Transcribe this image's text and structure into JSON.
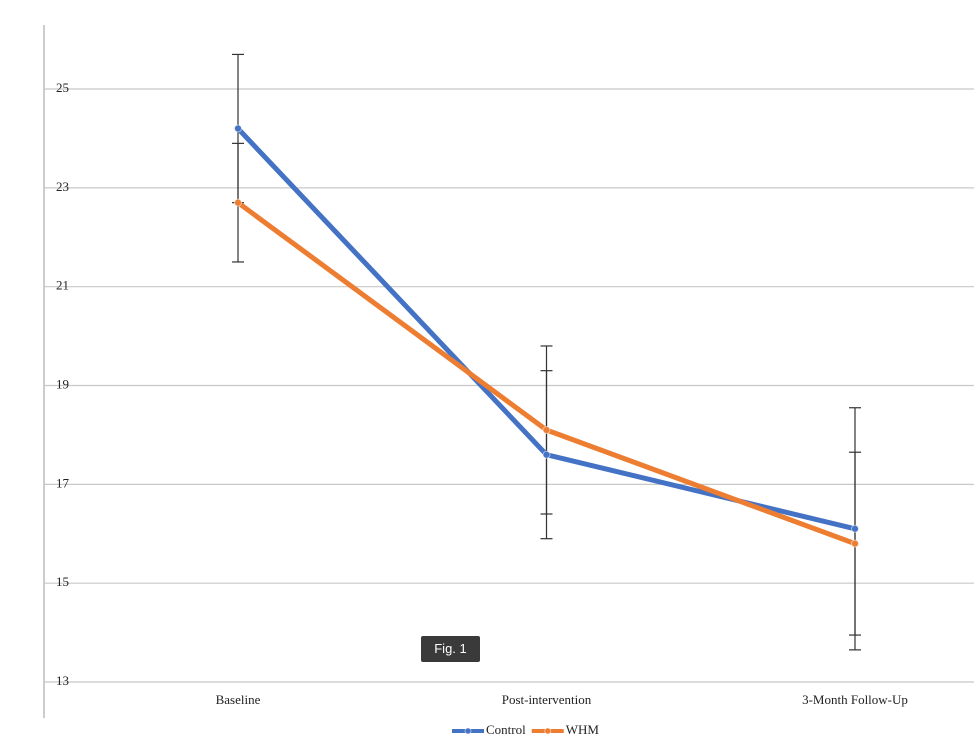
{
  "chart_data": {
    "type": "line",
    "categories": [
      "Baseline",
      "Post-intervention",
      "3-Month Follow-Up"
    ],
    "series": [
      {
        "name": "Control",
        "color": "#4472c4",
        "values": [
          24.2,
          17.6,
          16.1
        ],
        "errors": [
          1.5,
          1.7,
          2.45
        ]
      },
      {
        "name": "WHM",
        "color": "#ed7d31",
        "values": [
          22.7,
          18.1,
          15.8
        ],
        "errors": [
          1.2,
          1.7,
          1.85
        ]
      }
    ],
    "ylim": [
      13,
      26
    ],
    "yticks": [
      13,
      15,
      17,
      19,
      21,
      23,
      25
    ],
    "grid": true,
    "legend": "bottom"
  },
  "figure_label": "Fig. 1"
}
